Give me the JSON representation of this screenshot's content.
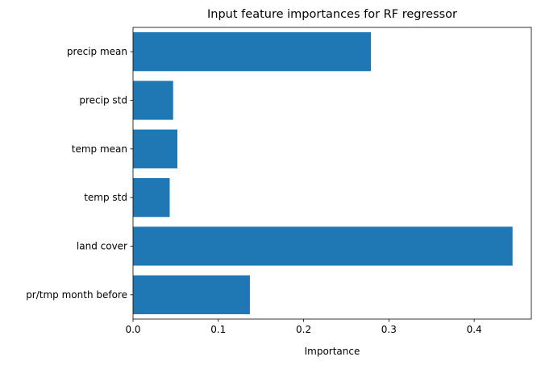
{
  "chart_data": {
    "type": "bar",
    "orientation": "horizontal",
    "title": "Input feature importances for RF regressor",
    "xlabel": "Importance",
    "ylabel": "",
    "categories": [
      "precip mean",
      "precip std",
      "temp mean",
      "temp std",
      "land cover",
      "pr/tmp month before"
    ],
    "values": [
      0.279,
      0.047,
      0.052,
      0.043,
      0.445,
      0.137
    ],
    "xlim": [
      0,
      0.467
    ],
    "xticks": [
      0.0,
      0.1,
      0.2,
      0.3,
      0.4
    ],
    "xtick_labels": [
      "0.0",
      "0.1",
      "0.2",
      "0.3",
      "0.4"
    ],
    "bar_color": "#1f77b4",
    "grid": false,
    "legend": "none"
  }
}
